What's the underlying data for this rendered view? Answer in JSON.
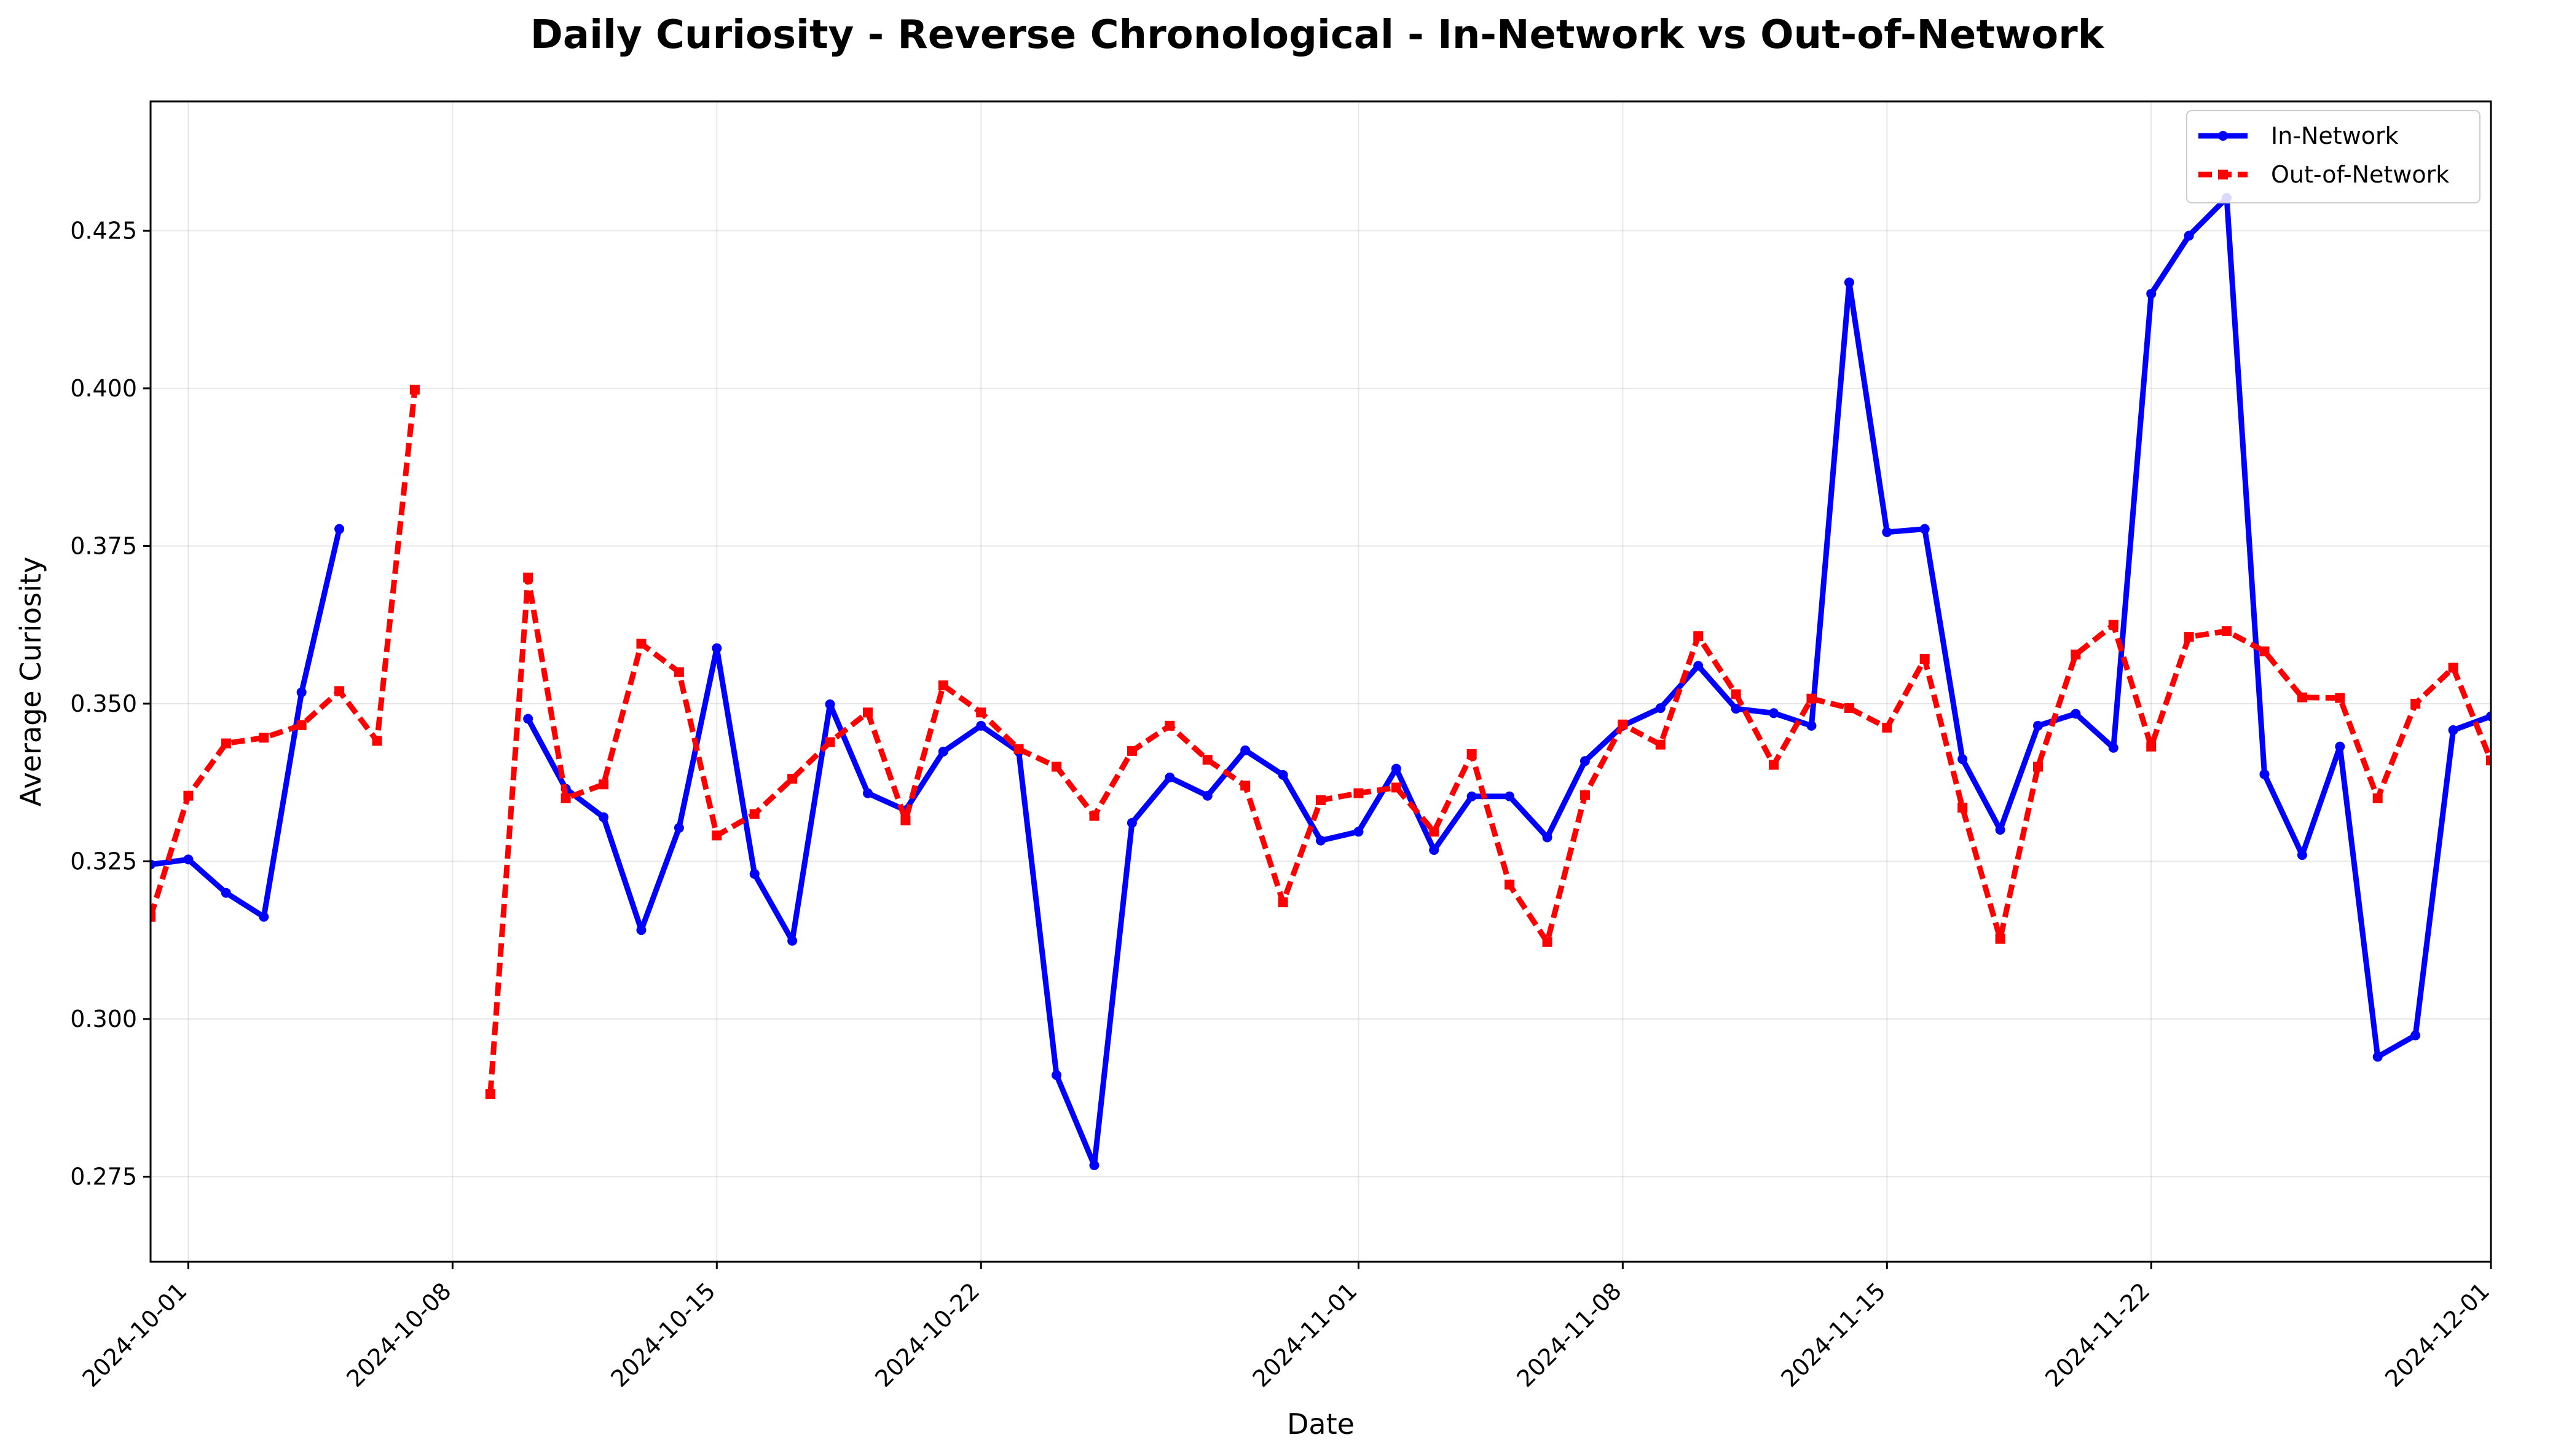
{
  "chart_data": {
    "type": "line",
    "title": "Daily Curiosity - Reverse Chronological - In-Network vs Out-of-Network",
    "xlabel": "Date",
    "ylabel": "Average Curiosity",
    "x_start": "2024-09-30",
    "xlim": [
      "2024-09-30",
      "2024-12-01"
    ],
    "ylim": [
      0.2615,
      0.4455
    ],
    "y_ticks": [
      0.275,
      0.3,
      0.325,
      0.35,
      0.375,
      0.4,
      0.425
    ],
    "y_tick_labels": [
      "0.275",
      "0.300",
      "0.325",
      "0.350",
      "0.375",
      "0.400",
      "0.425"
    ],
    "x_tick_labels": [
      "2024-10-01",
      "2024-10-08",
      "2024-10-15",
      "2024-10-22",
      "2024-11-01",
      "2024-11-08",
      "2024-11-15",
      "2024-11-22",
      "2024-12-01"
    ],
    "x_tick_dates": [
      "2024-10-01",
      "2024-10-08",
      "2024-10-15",
      "2024-10-22",
      "2024-11-01",
      "2024-11-08",
      "2024-11-15",
      "2024-11-22",
      "2024-12-01"
    ],
    "grid": true,
    "legend_position": "top-right",
    "series": [
      {
        "name": "In-Network",
        "color": "#0000ff",
        "style": "solid",
        "marker": "circle",
        "values": [
          0.3245,
          0.3253,
          0.32,
          0.3162,
          0.3518,
          0.3777,
          null,
          null,
          null,
          null,
          0.3476,
          0.3365,
          0.332,
          0.3141,
          0.3303,
          0.3588,
          0.323,
          0.3124,
          0.3499,
          0.3358,
          0.3331,
          0.3424,
          0.3465,
          0.3424,
          0.2911,
          0.2768,
          0.3311,
          0.3383,
          0.3354,
          0.3426,
          0.3387,
          0.3283,
          0.3297,
          0.3397,
          0.3268,
          0.3353,
          0.3353,
          0.3288,
          0.3409,
          0.3465,
          0.3493,
          0.356,
          0.3492,
          0.3485,
          0.3465,
          0.4168,
          0.3772,
          0.3777,
          0.3412,
          0.33,
          0.3465,
          0.3484,
          0.343,
          0.415,
          0.4242,
          0.4302,
          0.3388,
          0.326,
          0.3432,
          0.294,
          0.2974,
          0.3458,
          0.348
        ]
      },
      {
        "name": "Out-of-Network",
        "color": "#ff0000",
        "style": "dashed",
        "marker": "square",
        "values": [
          0.3162,
          0.3354,
          0.3437,
          0.3446,
          0.3466,
          0.352,
          0.3441,
          0.3998,
          null,
          0.2881,
          0.37,
          0.335,
          0.3372,
          0.3595,
          0.355,
          0.3291,
          0.3325,
          0.3381,
          0.3439,
          0.3486,
          0.3315,
          0.3529,
          0.3486,
          0.3428,
          0.34,
          0.3322,
          0.3425,
          0.3465,
          0.3411,
          0.337,
          0.3185,
          0.3347,
          0.3358,
          0.3367,
          0.3297,
          0.342,
          0.3213,
          0.3122,
          0.3355,
          0.3467,
          0.3435,
          0.3607,
          0.3515,
          0.3403,
          0.3508,
          0.3493,
          0.3462,
          0.3571,
          0.3335,
          0.3127,
          0.34,
          0.3578,
          0.3625,
          0.3432,
          0.3606,
          0.3615,
          0.3583,
          0.351,
          0.3509,
          0.335,
          0.35,
          0.3557,
          0.341
        ]
      }
    ]
  }
}
